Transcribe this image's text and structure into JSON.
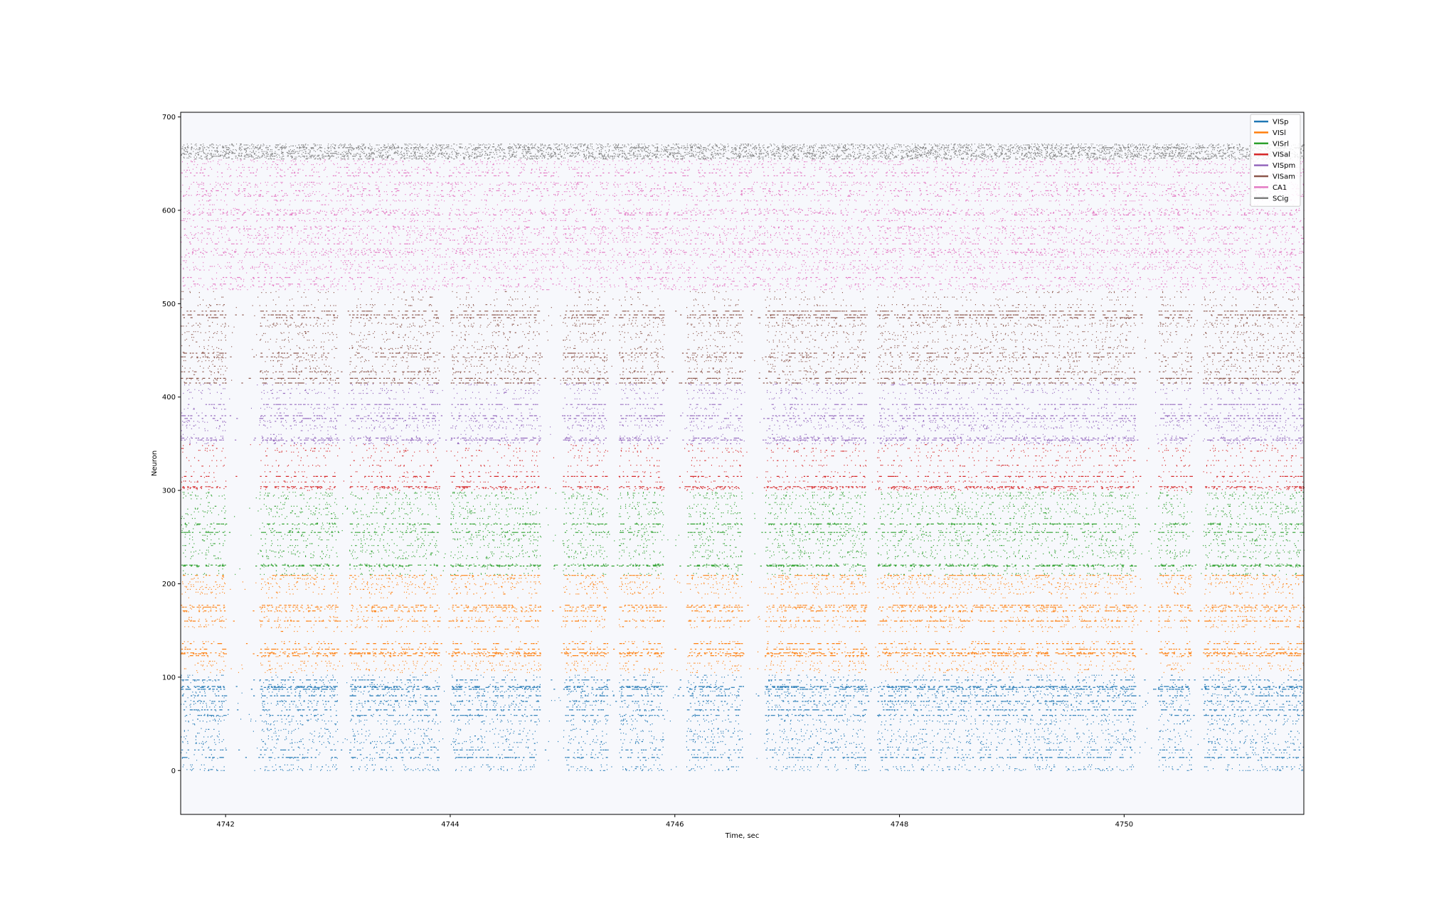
{
  "chart_data": {
    "type": "scatter",
    "subtype": "raster",
    "title": "",
    "xlabel": "Time, sec",
    "ylabel": "Neuron",
    "xlim": [
      4741.6,
      4751.6
    ],
    "ylim": [
      -47,
      705
    ],
    "xticks": [
      4742,
      4744,
      4746,
      4748,
      4750
    ],
    "yticks": [
      0,
      100,
      200,
      300,
      400,
      500,
      600,
      700
    ],
    "grid": false,
    "background": "#f7f8fc",
    "legend_position": "top-right",
    "series": [
      {
        "name": "VISp",
        "color": "#1f77b4",
        "units": [
          0,
          105
        ]
      },
      {
        "name": "VISl",
        "color": "#ff7f0e",
        "units": [
          105,
          210
        ]
      },
      {
        "name": "VISrl",
        "color": "#2ca02c",
        "units": [
          210,
          300
        ]
      },
      {
        "name": "VISal",
        "color": "#d62728",
        "units": [
          300,
          350
        ]
      },
      {
        "name": "VISpm",
        "color": "#9467bd",
        "units": [
          350,
          415
        ]
      },
      {
        "name": "VISam",
        "color": "#8c564b",
        "units": [
          415,
          515
        ]
      },
      {
        "name": "CA1",
        "color": "#e377c2",
        "units": [
          515,
          655
        ]
      },
      {
        "name": "SCig",
        "color": "#7f7f7f",
        "units": [
          655,
          672
        ]
      }
    ],
    "population_bursts_sec": [
      [
        4741.6,
        4742.0
      ],
      [
        4742.3,
        4743.0
      ],
      [
        4743.1,
        4743.9
      ],
      [
        4744.0,
        4744.8
      ],
      [
        4745.0,
        4745.4
      ],
      [
        4745.5,
        4745.9
      ],
      [
        4746.1,
        4746.6
      ],
      [
        4746.8,
        4747.2
      ],
      [
        4747.2,
        4747.7
      ],
      [
        4747.8,
        4748.5
      ],
      [
        4748.5,
        4749.0
      ],
      [
        4749.0,
        4749.5
      ],
      [
        4749.5,
        4750.1
      ],
      [
        4750.3,
        4750.6
      ],
      [
        4750.7,
        4751.6
      ]
    ]
  }
}
